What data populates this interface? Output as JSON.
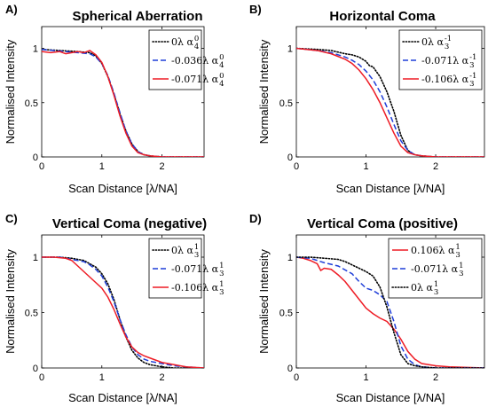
{
  "chart_data": [
    {
      "type": "line",
      "panel": "A)",
      "title": "Spherical Aberration",
      "xlabel": "Scan Distance [λ/NA]",
      "ylabel": "Normalised Intensity",
      "xlim": [
        0,
        2.7
      ],
      "ylim": [
        0,
        1.2
      ],
      "xticks": [
        "0",
        "1",
        "2"
      ],
      "yticks": [
        "0",
        "0.5",
        "1"
      ],
      "legend_position": "top-right",
      "series": [
        {
          "name": "0λ α₄⁰",
          "legend": {
            "coef": "0λ α",
            "sub": "4",
            "sup": "0"
          },
          "color": "#000000",
          "dash": "dotted",
          "x": [
            0,
            0.3,
            0.6,
            0.8,
            0.9,
            1.0,
            1.1,
            1.2,
            1.3,
            1.4,
            1.5,
            1.6,
            1.7,
            1.8,
            2.0,
            2.7
          ],
          "y": [
            0.99,
            0.98,
            0.97,
            0.96,
            0.93,
            0.86,
            0.74,
            0.58,
            0.4,
            0.24,
            0.12,
            0.05,
            0.02,
            0.01,
            0.0,
            0.0
          ]
        },
        {
          "name": "-0.036λ α₄⁰",
          "legend": {
            "coef": "-0.036λ α",
            "sub": "4",
            "sup": "0"
          },
          "color": "#1f3ed8",
          "dash": "dashed",
          "x": [
            0,
            0.2,
            0.4,
            0.6,
            0.8,
            0.9,
            1.0,
            1.1,
            1.2,
            1.3,
            1.4,
            1.5,
            1.6,
            1.7,
            1.8,
            2.0,
            2.7
          ],
          "y": [
            0.99,
            0.98,
            0.97,
            0.96,
            0.95,
            0.92,
            0.86,
            0.75,
            0.59,
            0.41,
            0.24,
            0.12,
            0.05,
            0.02,
            0.01,
            0.0,
            0.0
          ]
        },
        {
          "name": "-0.071λ α₄⁰",
          "legend": {
            "coef": "-0.071λ α",
            "sub": "4",
            "sup": "0"
          },
          "color": "#ee1c25",
          "dash": "solid",
          "x": [
            0,
            0.15,
            0.3,
            0.4,
            0.5,
            0.6,
            0.7,
            0.8,
            0.9,
            1.0,
            1.1,
            1.2,
            1.3,
            1.4,
            1.5,
            1.6,
            1.7,
            1.8,
            2.0,
            2.7
          ],
          "y": [
            0.97,
            0.96,
            0.97,
            0.95,
            0.96,
            0.97,
            0.96,
            0.98,
            0.94,
            0.87,
            0.74,
            0.57,
            0.38,
            0.22,
            0.1,
            0.04,
            0.02,
            0.01,
            0.0,
            0.0
          ]
        }
      ]
    },
    {
      "type": "line",
      "panel": "B)",
      "title": "Horizontal Coma",
      "xlabel": "Scan Distance [λ/NA]",
      "ylabel": "Normalised Intensity",
      "xlim": [
        0,
        2.7
      ],
      "ylim": [
        0,
        1.2
      ],
      "xticks": [
        "0",
        "1",
        "2"
      ],
      "yticks": [
        "0",
        "0.5",
        "1"
      ],
      "legend_position": "top-right",
      "series": [
        {
          "name": "0λ α₃⁻¹",
          "legend": {
            "coef": "0λ α",
            "sub": "3",
            "sup": "-1"
          },
          "color": "#000000",
          "dash": "dotted",
          "x": [
            0,
            0.3,
            0.5,
            0.7,
            0.8,
            0.9,
            1.0,
            1.05,
            1.1,
            1.2,
            1.3,
            1.4,
            1.5,
            1.6,
            1.7,
            1.8,
            2.0,
            2.7
          ],
          "y": [
            1.0,
            0.99,
            0.98,
            0.95,
            0.94,
            0.92,
            0.88,
            0.84,
            0.83,
            0.74,
            0.6,
            0.42,
            0.2,
            0.06,
            0.02,
            0.01,
            0.0,
            0.0
          ]
        },
        {
          "name": "-0.071λ α₃⁻¹",
          "legend": {
            "coef": "-0.071λ α",
            "sub": "3",
            "sup": "-1"
          },
          "color": "#1f3ed8",
          "dash": "dashed",
          "x": [
            0,
            0.3,
            0.5,
            0.7,
            0.8,
            0.9,
            1.0,
            1.1,
            1.2,
            1.3,
            1.4,
            1.5,
            1.6,
            1.7,
            1.8,
            2.0,
            2.7
          ],
          "y": [
            1.0,
            0.98,
            0.96,
            0.92,
            0.89,
            0.85,
            0.79,
            0.71,
            0.6,
            0.46,
            0.3,
            0.15,
            0.06,
            0.02,
            0.01,
            0.0,
            0.0
          ]
        },
        {
          "name": "-0.106λ α₃⁻¹",
          "legend": {
            "coef": "-0.106λ α",
            "sub": "3",
            "sup": "-1"
          },
          "color": "#ee1c25",
          "dash": "solid",
          "x": [
            0,
            0.3,
            0.5,
            0.7,
            0.8,
            0.9,
            1.0,
            1.1,
            1.2,
            1.3,
            1.4,
            1.5,
            1.6,
            1.7,
            1.8,
            2.0,
            2.7
          ],
          "y": [
            1.0,
            0.98,
            0.95,
            0.9,
            0.86,
            0.8,
            0.72,
            0.62,
            0.5,
            0.36,
            0.22,
            0.1,
            0.04,
            0.02,
            0.01,
            0.0,
            0.0
          ]
        }
      ]
    },
    {
      "type": "line",
      "panel": "C)",
      "title": "Vertical Coma (negative)",
      "xlabel": "Scan Distance [λ/NA]",
      "ylabel": "Normalised Intensity",
      "xlim": [
        0,
        2.7
      ],
      "ylim": [
        0,
        1.2
      ],
      "xticks": [
        "0",
        "1",
        "2"
      ],
      "yticks": [
        "0",
        "0.5",
        "1"
      ],
      "legend_position": "top-right",
      "series": [
        {
          "name": "0λ α₃¹",
          "legend": {
            "coef": "0λ α",
            "sub": "3",
            "sup": "1"
          },
          "color": "#000000",
          "dash": "dotted",
          "x": [
            0,
            0.3,
            0.5,
            0.7,
            0.8,
            0.9,
            1.0,
            1.1,
            1.2,
            1.3,
            1.4,
            1.5,
            1.6,
            1.7,
            1.8,
            1.9,
            2.0,
            2.2,
            2.7
          ],
          "y": [
            1.0,
            1.0,
            0.99,
            0.97,
            0.94,
            0.91,
            0.85,
            0.76,
            0.62,
            0.44,
            0.28,
            0.16,
            0.09,
            0.05,
            0.03,
            0.02,
            0.01,
            0.0,
            0.0
          ]
        },
        {
          "name": "-0.071λ α₃¹",
          "legend": {
            "coef": "-0.071λ α",
            "sub": "3",
            "sup": "1"
          },
          "color": "#1f3ed8",
          "dash": "dashed",
          "x": [
            0,
            0.3,
            0.5,
            0.7,
            0.8,
            0.9,
            1.0,
            1.1,
            1.2,
            1.3,
            1.4,
            1.5,
            1.6,
            1.7,
            1.8,
            1.9,
            2.0,
            2.2,
            2.4,
            2.7
          ],
          "y": [
            1.0,
            1.0,
            0.98,
            0.96,
            0.93,
            0.89,
            0.83,
            0.73,
            0.6,
            0.44,
            0.3,
            0.19,
            0.12,
            0.08,
            0.06,
            0.05,
            0.04,
            0.02,
            0.01,
            0.0
          ]
        },
        {
          "name": "-0.106λ α₃¹",
          "legend": {
            "coef": "-0.106λ α",
            "sub": "3",
            "sup": "1"
          },
          "color": "#ee1c25",
          "dash": "solid",
          "x": [
            0,
            0.2,
            0.4,
            0.5,
            0.6,
            0.7,
            0.8,
            0.9,
            1.0,
            1.1,
            1.2,
            1.3,
            1.4,
            1.5,
            1.6,
            1.7,
            1.8,
            1.9,
            2.0,
            2.2,
            2.4,
            2.7
          ],
          "y": [
            1.0,
            1.0,
            0.99,
            0.97,
            0.92,
            0.87,
            0.82,
            0.77,
            0.72,
            0.64,
            0.53,
            0.4,
            0.28,
            0.19,
            0.14,
            0.11,
            0.09,
            0.07,
            0.05,
            0.03,
            0.01,
            0.0
          ]
        }
      ]
    },
    {
      "type": "line",
      "panel": "D)",
      "title": "Vertical Coma (positive)",
      "xlabel": "Scan Distance [λ/NA]",
      "ylabel": "Normalised Intensity",
      "xlim": [
        0,
        2.7
      ],
      "ylim": [
        0,
        1.2
      ],
      "xticks": [
        "0",
        "1",
        "2"
      ],
      "yticks": [
        "0",
        "0.5",
        "1"
      ],
      "legend_position": "top-right",
      "series": [
        {
          "name": "0.106λ α₃¹",
          "legend": {
            "coef": "0.106λ α",
            "sub": "3",
            "sup": "1"
          },
          "color": "#ee1c25",
          "dash": "solid",
          "x": [
            0,
            0.1,
            0.2,
            0.3,
            0.35,
            0.4,
            0.5,
            0.6,
            0.7,
            0.8,
            0.9,
            1.0,
            1.1,
            1.2,
            1.3,
            1.4,
            1.5,
            1.6,
            1.7,
            1.8,
            2.0,
            2.2,
            2.7
          ],
          "y": [
            1.0,
            0.99,
            0.97,
            0.94,
            0.88,
            0.9,
            0.89,
            0.84,
            0.78,
            0.7,
            0.62,
            0.54,
            0.49,
            0.45,
            0.42,
            0.35,
            0.26,
            0.15,
            0.08,
            0.04,
            0.02,
            0.01,
            0.0
          ]
        },
        {
          "name": "-0.071λ α₃¹",
          "legend": {
            "coef": "-0.071λ α",
            "sub": "3",
            "sup": "1"
          },
          "color": "#1f3ed8",
          "dash": "dashed",
          "x": [
            0,
            0.2,
            0.4,
            0.6,
            0.8,
            0.9,
            1.0,
            1.1,
            1.2,
            1.3,
            1.4,
            1.5,
            1.6,
            1.7,
            1.8,
            2.0,
            2.7
          ],
          "y": [
            1.0,
            0.99,
            0.95,
            0.92,
            0.85,
            0.78,
            0.72,
            0.7,
            0.66,
            0.6,
            0.42,
            0.2,
            0.08,
            0.03,
            0.01,
            0.0,
            0.0
          ]
        },
        {
          "name": "0λ α₃¹",
          "legend": {
            "coef": "0λ α",
            "sub": "3",
            "sup": "1"
          },
          "color": "#000000",
          "dash": "dotted",
          "x": [
            0,
            0.2,
            0.4,
            0.6,
            0.7,
            0.8,
            0.9,
            1.0,
            1.1,
            1.2,
            1.3,
            1.4,
            1.5,
            1.6,
            1.7,
            1.8,
            2.0,
            2.7
          ],
          "y": [
            1.0,
            1.0,
            0.99,
            0.98,
            0.96,
            0.93,
            0.9,
            0.87,
            0.83,
            0.73,
            0.55,
            0.32,
            0.12,
            0.04,
            0.02,
            0.01,
            0.0,
            0.0
          ]
        }
      ]
    }
  ]
}
